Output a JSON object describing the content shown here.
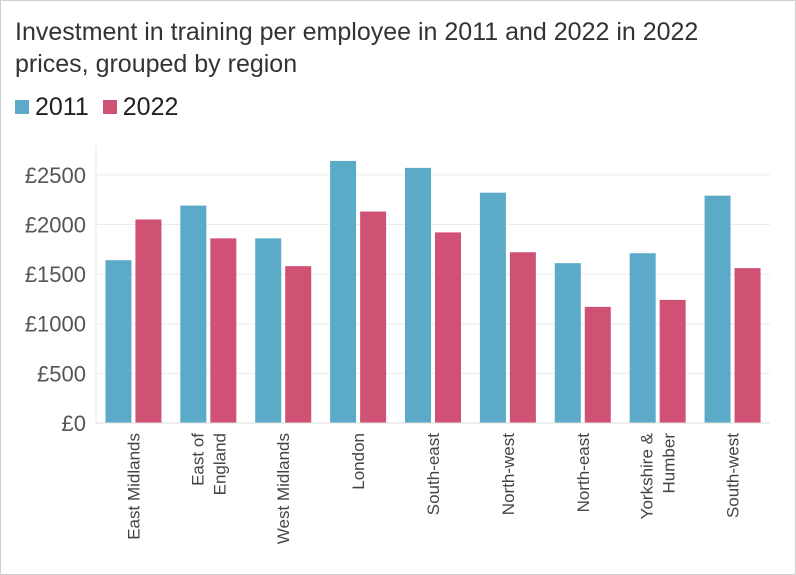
{
  "chart_data": {
    "type": "bar",
    "title": "Investment in training per employee in 2011 and 2022 in 2022 prices, grouped by region",
    "xlabel": "",
    "ylabel": "",
    "ylim": [
      0,
      2750
    ],
    "yticks": [
      0,
      500,
      1000,
      1500,
      2000,
      2500
    ],
    "ytick_labels": [
      "£0",
      "£500",
      "£1000",
      "£1500",
      "£2000",
      "£2500"
    ],
    "categories": [
      [
        "East Midlands"
      ],
      [
        "East of",
        "England"
      ],
      [
        "West Midlands"
      ],
      [
        "London"
      ],
      [
        "South-east"
      ],
      [
        "North-west"
      ],
      [
        "North-east"
      ],
      [
        "Yorkshire &",
        "Humber"
      ],
      [
        "South-west"
      ]
    ],
    "series": [
      {
        "name": "2011",
        "color": "#5aaac8",
        "values": [
          1640,
          2190,
          1860,
          2640,
          2570,
          2320,
          1610,
          1710,
          2290
        ]
      },
      {
        "name": "2022",
        "color": "#cf5173",
        "values": [
          2050,
          1860,
          1580,
          2130,
          1920,
          1720,
          1170,
          1240,
          1560
        ]
      }
    ],
    "grid": true,
    "legend_position": "top-left"
  }
}
